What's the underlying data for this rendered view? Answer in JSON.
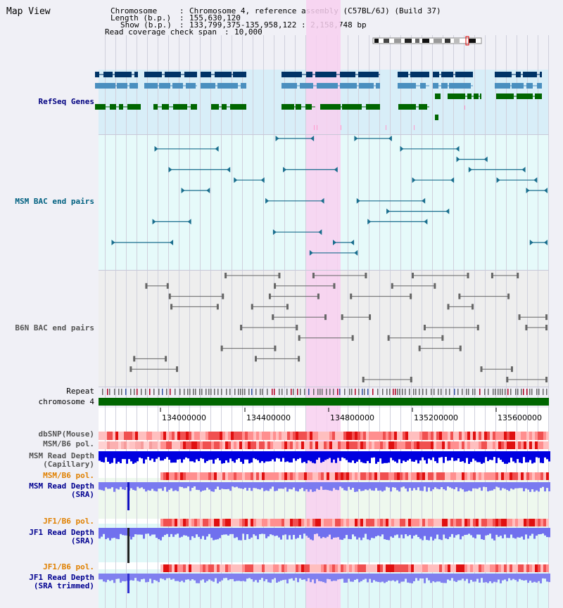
{
  "app": {
    "title": "Map View"
  },
  "info": {
    "chromosome_key": "Chromosome",
    "chromosome_value": "Chromosome 4, reference assembly (C57BL/6J) (Build 37)",
    "length_key": "Length (b.p.)",
    "length_value": "155,630,120",
    "show_key": "Show (b.p.)",
    "show_value": "133,799,375-135,958,122 : 2,158,748 bp",
    "span_key": "Read coverage check span",
    "span_value": "10,000"
  },
  "tracks": {
    "refseq": "RefSeq Genes",
    "msm_bac": "MSM BAC end pairs",
    "b6n_bac": "B6N BAC end pairs",
    "repeat": "Repeat",
    "chromosome": "chromosome 4",
    "dbsnp": "dbSNP(Mouse)",
    "msm_b6_pol": "MSM/B6 pol.",
    "msm_read_depth_cap": "MSM Read Depth\n(Capillary)",
    "msm_b6_pol_2": "MSM/B6 pol.",
    "msm_read_depth_sra": "MSM Read Depth\n(SRA)",
    "jf1_b6_pol": "JF1/B6 pol.",
    "jf1_read_depth_sra": "JF1 Read Depth\n(SRA)",
    "jf1_b6_pol_2": "JF1/B6 pol.",
    "jf1_read_depth_trim": "JF1 Read Depth\n(SRA trimmed)"
  },
  "axis": {
    "ticks": [
      "134000000",
      "134400000",
      "134800000",
      "135200000",
      "135600000"
    ]
  },
  "colors": {
    "refseq_label": "#000080",
    "msm_label": "#006080",
    "b6n_label": "#555555",
    "orange_label": "#e08000",
    "blue_label": "#000090",
    "highlight": "#f8d0f0",
    "gene_dark": "#003366",
    "gene_light": "#4a8fbf",
    "gene_green": "#006600",
    "msm_pair": "#1a6e8e",
    "chromosome_bar": "#006600"
  }
}
